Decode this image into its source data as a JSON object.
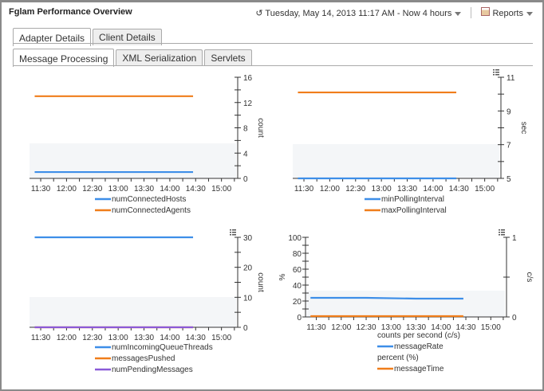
{
  "header": {
    "title": "Fglam Performance Overview",
    "time_range": "Tuesday, May 14, 2013 11:17 AM - Now 4 hours",
    "time_icon": "clock-arrow-icon",
    "reports_label": "Reports",
    "reports_icon": "report-icon"
  },
  "tabs": [
    {
      "label": "Adapter Details",
      "active": true
    },
    {
      "label": "Client Details",
      "active": false
    }
  ],
  "subtabs": [
    {
      "label": "Message Processing",
      "active": true
    },
    {
      "label": "XML Serialization",
      "active": false
    },
    {
      "label": "Servlets",
      "active": false
    }
  ],
  "colors": {
    "blue": "#3d8ee8",
    "orange": "#f07d1a",
    "purple": "#8a5ad8"
  },
  "chart_data": [
    {
      "type": "line",
      "x_ticks": [
        "11:30",
        "12:00",
        "12:30",
        "13:00",
        "13:30",
        "14:00",
        "14:30",
        "15:00"
      ],
      "x_range": [
        "11:17",
        "15:17"
      ],
      "y_right": {
        "label": "count",
        "range": [
          0,
          16
        ],
        "ticks": [
          0,
          4,
          8,
          12,
          16
        ]
      },
      "series": [
        {
          "name": "numConnectedHosts",
          "color": "#3d8ee8",
          "x": [
            "11:23",
            "14:27"
          ],
          "y": [
            1,
            1
          ]
        },
        {
          "name": "numConnectedAgents",
          "color": "#f07d1a",
          "x": [
            "11:23",
            "14:27"
          ],
          "y": [
            13,
            13
          ]
        }
      ]
    },
    {
      "type": "line",
      "x_ticks": [
        "11:30",
        "12:00",
        "12:30",
        "13:00",
        "13:30",
        "14:00",
        "14:30",
        "15:00"
      ],
      "x_range": [
        "11:17",
        "15:17"
      ],
      "y_right": {
        "label": "sec",
        "range": [
          5,
          11
        ],
        "ticks": [
          5,
          7,
          9,
          11
        ]
      },
      "series": [
        {
          "name": "minPollingInterval",
          "color": "#3d8ee8",
          "x": [
            "11:23",
            "14:27"
          ],
          "y": [
            5,
            5
          ]
        },
        {
          "name": "maxPollingInterval",
          "color": "#f07d1a",
          "x": [
            "11:23",
            "14:27"
          ],
          "y": [
            10.1,
            10.1
          ]
        }
      ]
    },
    {
      "type": "line",
      "x_ticks": [
        "11:30",
        "12:00",
        "12:30",
        "13:00",
        "13:30",
        "14:00",
        "14:30",
        "15:00"
      ],
      "x_range": [
        "11:17",
        "15:17"
      ],
      "y_right": {
        "label": "count",
        "range": [
          0,
          30
        ],
        "ticks": [
          0,
          10,
          20,
          30
        ]
      },
      "series": [
        {
          "name": "numIncomingQueueThreads",
          "color": "#3d8ee8",
          "x": [
            "11:23",
            "14:27"
          ],
          "y": [
            30,
            30
          ]
        },
        {
          "name": "messagesPushed",
          "color": "#f07d1a",
          "x": [
            "11:23",
            "14:27"
          ],
          "y": [
            0,
            0
          ]
        },
        {
          "name": "numPendingMessages",
          "color": "#8a5ad8",
          "x": [
            "11:23",
            "14:27"
          ],
          "y": [
            0,
            0
          ]
        }
      ]
    },
    {
      "type": "line",
      "x_ticks": [
        "11:30",
        "12:00",
        "12:30",
        "13:00",
        "13:30",
        "14:00",
        "14:30",
        "15:00"
      ],
      "x_range": [
        "11:17",
        "15:17"
      ],
      "y_left": {
        "label": "%",
        "range": [
          0,
          100
        ],
        "ticks": [
          0,
          20,
          40,
          60,
          80,
          100
        ]
      },
      "y_right": {
        "label": "c/s",
        "range": [
          0,
          1
        ],
        "ticks": [
          0,
          1
        ]
      },
      "legend_groups": [
        "counts per second (c/s)",
        "percent (%)"
      ],
      "series": [
        {
          "name": "messageRate",
          "color": "#3d8ee8",
          "x": [
            "11:23",
            "12:30",
            "13:30",
            "14:27"
          ],
          "y": [
            24,
            24,
            23,
            23
          ]
        },
        {
          "name": "messageTime",
          "color": "#f07d1a",
          "x": [
            "11:23",
            "14:27"
          ],
          "y": [
            1,
            1
          ]
        }
      ]
    }
  ]
}
